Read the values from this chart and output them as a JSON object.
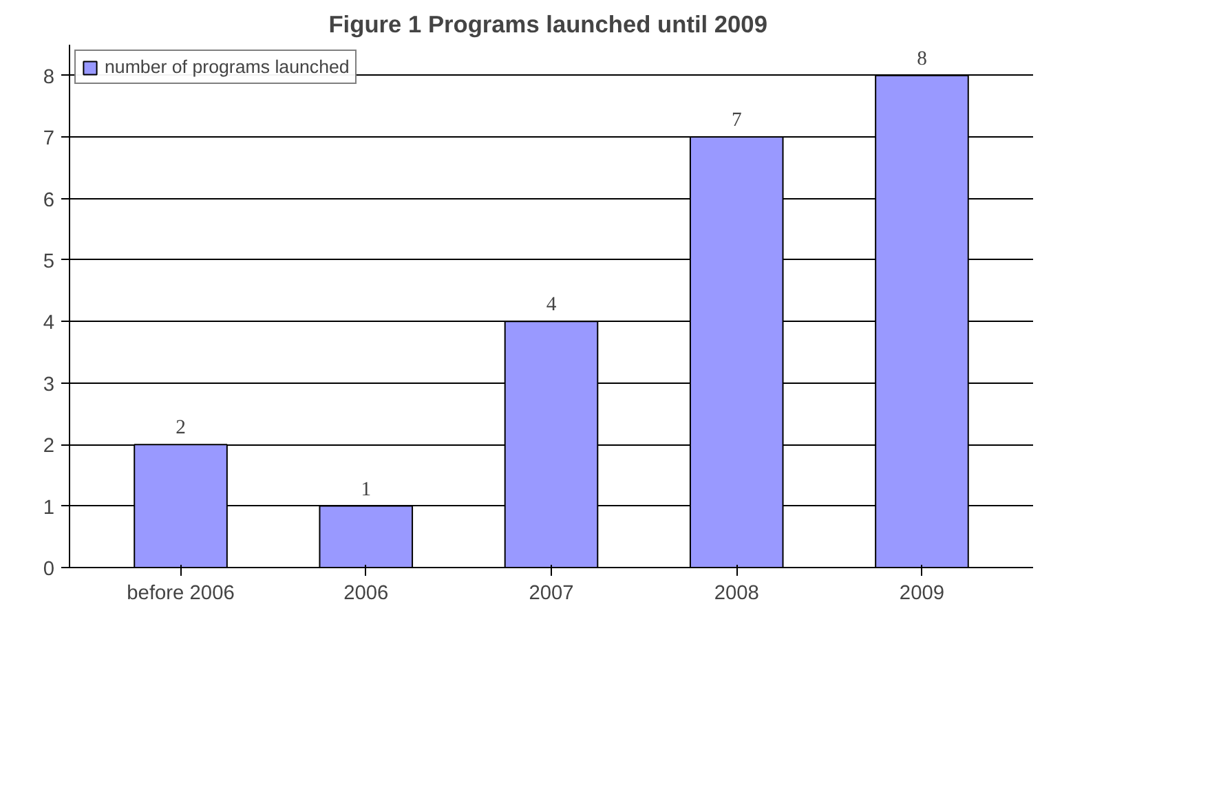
{
  "chart_data": {
    "type": "bar",
    "title": "Figure 1  Programs launched until 2009",
    "categories": [
      "before 2006",
      "2006",
      "2007",
      "2008",
      "2009"
    ],
    "series": [
      {
        "name": "number of programs launched",
        "color": "#9999ff",
        "values": [
          2,
          1,
          4,
          7,
          8
        ]
      }
    ],
    "ylim": [
      0,
      8.5
    ],
    "yticks": [
      0,
      1,
      2,
      3,
      4,
      5,
      6,
      7,
      8
    ],
    "grid": "y",
    "legend": "top left",
    "data_labels": true
  }
}
